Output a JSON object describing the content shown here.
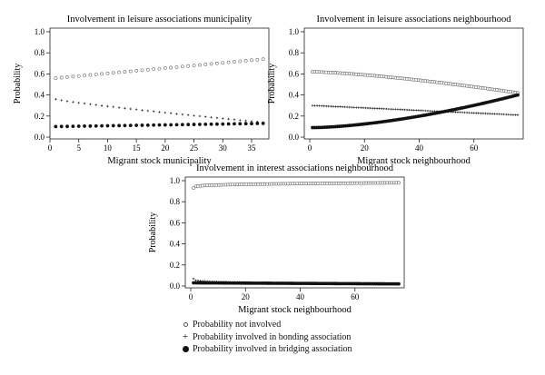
{
  "legend": {
    "items": [
      {
        "label": "Probability not involved",
        "symbol": "open-circle"
      },
      {
        "label": "Probability involved in bonding association",
        "symbol": "plus"
      },
      {
        "label": "Probability involved in bridging association",
        "symbol": "filled-circle"
      }
    ]
  },
  "chart_data": [
    {
      "type": "scatter",
      "title": "Involvement in leisure associations municipality",
      "xlabel": "Migrant stock municipality",
      "ylabel": "Probability",
      "xlim": [
        0,
        38
      ],
      "ylim": [
        0,
        1.0
      ],
      "xticks": [
        0,
        5,
        10,
        15,
        20,
        25,
        30,
        35
      ],
      "yticks": [
        0.0,
        0.2,
        0.4,
        0.6,
        0.8,
        1.0
      ],
      "ytick_labels": [
        "0.0",
        "0.2",
        "0.4",
        "0.6",
        "0.8",
        "1.0"
      ],
      "grid": false,
      "series": [
        {
          "key": "not",
          "x": [
            1,
            37
          ],
          "y": [
            0.56,
            0.74
          ],
          "curve": 1,
          "n": 37
        },
        {
          "key": "bonding",
          "x": [
            1,
            37
          ],
          "y": [
            0.36,
            0.14
          ],
          "curve": 0.85,
          "n": 37
        },
        {
          "key": "bridging",
          "x": [
            1,
            37
          ],
          "y": [
            0.1,
            0.13
          ],
          "curve": 1,
          "n": 37
        }
      ]
    },
    {
      "type": "scatter",
      "title": "Involvement in leisure associations neighbourhood",
      "xlabel": "Migrant stock neighbourhood",
      "ylabel": "Probability",
      "xlim": [
        -2,
        78
      ],
      "ylim": [
        0,
        1.0
      ],
      "xticks": [
        0,
        20,
        40,
        60
      ],
      "yticks": [
        0.0,
        0.2,
        0.4,
        0.6,
        0.8,
        1.0
      ],
      "ytick_labels": [
        "0.0",
        "0.2",
        "0.4",
        "0.6",
        "0.8",
        "1.0"
      ],
      "grid": false,
      "series": [
        {
          "key": "not",
          "x": [
            1,
            76
          ],
          "y": [
            0.62,
            0.42
          ],
          "curve": 1.4,
          "n": 90
        },
        {
          "key": "bonding",
          "x": [
            1,
            76
          ],
          "y": [
            0.3,
            0.21
          ],
          "curve": 1,
          "n": 90
        },
        {
          "key": "bridging",
          "x": [
            1,
            76
          ],
          "y": [
            0.09,
            0.4
          ],
          "curve": 1.6,
          "n": 100
        }
      ]
    },
    {
      "type": "scatter",
      "title": "Involvement in interest associations neighbourhood",
      "xlabel": "Migrant stock neighbourhood",
      "ylabel": "Probability",
      "xlim": [
        -2,
        78
      ],
      "ylim": [
        0,
        1.0
      ],
      "xticks": [
        0,
        20,
        40,
        60
      ],
      "yticks": [
        0.0,
        0.2,
        0.4,
        0.6,
        0.8,
        1.0
      ],
      "ytick_labels": [
        "0.0",
        "0.2",
        "0.4",
        "0.6",
        "0.8",
        "1.0"
      ],
      "grid": false,
      "series": [
        {
          "key": "not",
          "x": [
            1,
            76
          ],
          "y": [
            0.93,
            0.98
          ],
          "curve": 0.25,
          "n": 90
        },
        {
          "key": "bonding",
          "x": [
            1,
            76
          ],
          "y": [
            0.07,
            0.02
          ],
          "curve": 0.25,
          "n": 90
        },
        {
          "key": "bridging",
          "x": [
            1,
            76
          ],
          "y": [
            0.03,
            0.02
          ],
          "curve": 1,
          "n": 100
        }
      ]
    }
  ]
}
